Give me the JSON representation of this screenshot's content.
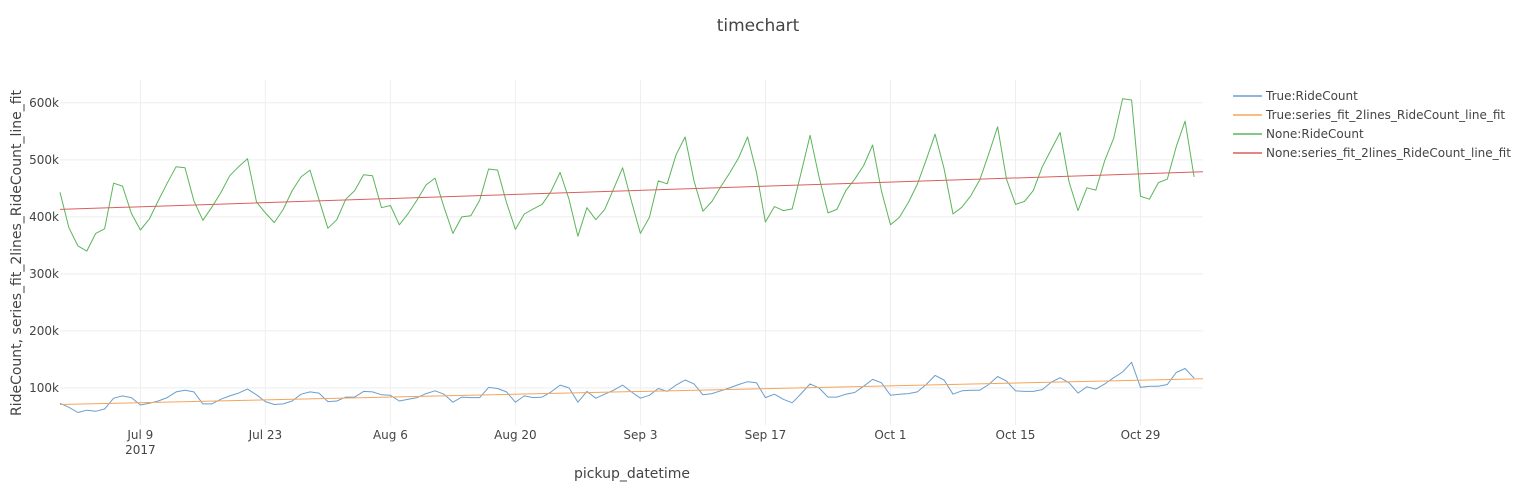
{
  "chart_data": {
    "type": "line",
    "title": "timechart",
    "xlabel": "pickup_datetime",
    "ylabel": "RideCount, series_fit_2lines_RideCount_line_fit",
    "grid": true,
    "legend_position": "right",
    "x_range": [
      "2017-06-30",
      "2017-11-05"
    ],
    "ylim": [
      35000,
      640000
    ],
    "x_ticks": [
      {
        "date": "2017-07-09",
        "label": "Jul 9",
        "sublabel": "2017"
      },
      {
        "date": "2017-07-23",
        "label": "Jul 23",
        "sublabel": ""
      },
      {
        "date": "2017-08-06",
        "label": "Aug 6",
        "sublabel": ""
      },
      {
        "date": "2017-08-20",
        "label": "Aug 20",
        "sublabel": ""
      },
      {
        "date": "2017-09-03",
        "label": "Sep 3",
        "sublabel": ""
      },
      {
        "date": "2017-09-17",
        "label": "Sep 17",
        "sublabel": ""
      },
      {
        "date": "2017-10-01",
        "label": "Oct 1",
        "sublabel": ""
      },
      {
        "date": "2017-10-15",
        "label": "Oct 15",
        "sublabel": ""
      },
      {
        "date": "2017-10-29",
        "label": "Oct 29",
        "sublabel": ""
      }
    ],
    "y_ticks": [
      {
        "value": 100000,
        "label": "100k"
      },
      {
        "value": 200000,
        "label": "200k"
      },
      {
        "value": 300000,
        "label": "300k"
      },
      {
        "value": 400000,
        "label": "400k"
      },
      {
        "value": 500000,
        "label": "500k"
      },
      {
        "value": 600000,
        "label": "600k"
      }
    ],
    "x_start": "2017-06-30",
    "x_interval": "1 day",
    "series": [
      {
        "name": "True:RideCount",
        "color": "#6a9fcf",
        "values": [
          73000,
          66000,
          57000,
          61000,
          59000,
          63000,
          82000,
          86000,
          83000,
          70000,
          73000,
          77000,
          83000,
          93000,
          96000,
          93000,
          72000,
          72000,
          80000,
          86000,
          91000,
          98000,
          88000,
          76000,
          71000,
          72000,
          77000,
          89000,
          93000,
          91000,
          76000,
          77000,
          84000,
          84000,
          94000,
          93000,
          88000,
          87000,
          77000,
          80000,
          83000,
          90000,
          95000,
          89000,
          75000,
          84000,
          83000,
          83000,
          101000,
          99000,
          93000,
          75000,
          86000,
          83000,
          84000,
          93000,
          105000,
          100000,
          75000,
          94000,
          82000,
          89000,
          96000,
          105000,
          93000,
          82000,
          87000,
          99000,
          94000,
          105000,
          114000,
          107000,
          88000,
          90000,
          95000,
          100000,
          106000,
          111000,
          109000,
          83000,
          89000,
          80000,
          74000,
          90000,
          107000,
          100000,
          84000,
          84000,
          89000,
          92000,
          103000,
          115000,
          109000,
          87000,
          89000,
          90000,
          93000,
          106000,
          122000,
          114000,
          89000,
          95000,
          96000,
          96000,
          106000,
          120000,
          112000,
          95000,
          94000,
          94000,
          97000,
          110000,
          118000,
          109000,
          91000,
          102000,
          98000,
          107000,
          118000,
          128000,
          145000,
          101000,
          103000,
          103000,
          106000,
          127000,
          134000,
          117000
        ]
      },
      {
        "name": "True:series_fit_2lines_RideCount_line_fit",
        "color": "#f5a55b",
        "values": [
          71000,
          116000
        ]
      },
      {
        "name": "None:RideCount",
        "color": "#5bb55b",
        "values": [
          443000,
          381000,
          349000,
          340000,
          371000,
          379000,
          459000,
          454000,
          406000,
          377000,
          396000,
          428000,
          459000,
          488000,
          486000,
          428000,
          394000,
          417000,
          442000,
          472000,
          488000,
          502000,
          426000,
          407000,
          390000,
          413000,
          446000,
          470000,
          482000,
          430000,
          380000,
          395000,
          431000,
          446000,
          474000,
          472000,
          416000,
          420000,
          386000,
          406000,
          430000,
          456000,
          468000,
          417000,
          371000,
          400000,
          402000,
          429000,
          484000,
          482000,
          425000,
          378000,
          405000,
          414000,
          422000,
          445000,
          478000,
          431000,
          366000,
          416000,
          395000,
          413000,
          449000,
          486000,
          427000,
          371000,
          399000,
          463000,
          458000,
          509000,
          540000,
          463000,
          410000,
          427000,
          453000,
          477000,
          504000,
          540000,
          478000,
          391000,
          418000,
          411000,
          414000,
          478000,
          543000,
          470000,
          407000,
          413000,
          446000,
          466000,
          490000,
          526000,
          445000,
          386000,
          399000,
          425000,
          457000,
          500000,
          545000,
          485000,
          405000,
          417000,
          437000,
          465000,
          510000,
          558000,
          466000,
          422000,
          427000,
          446000,
          488000,
          518000,
          548000,
          461000,
          411000,
          451000,
          447000,
          499000,
          538000,
          607000,
          605000,
          436000,
          431000,
          460000,
          466000,
          523000,
          568000,
          470000
        ]
      },
      {
        "name": "None:series_fit_2lines_RideCount_line_fit",
        "color": "#dc5e5e",
        "values": [
          413000,
          479000
        ]
      }
    ]
  }
}
